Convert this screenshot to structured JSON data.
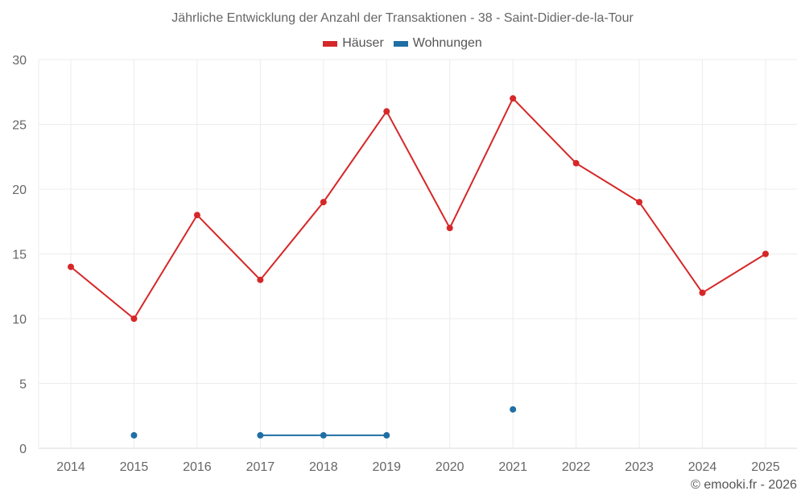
{
  "title": "Jährliche Entwicklung der Anzahl der Transaktionen - 38 - Saint-Didier-de-la-Tour",
  "legend": [
    {
      "label": "Häuser",
      "color": "#d62728"
    },
    {
      "label": "Wohnungen",
      "color": "#1f6fa5"
    }
  ],
  "credit": "© emooki.fr - 2026",
  "chart_data": {
    "type": "line",
    "title": "Jährliche Entwicklung der Anzahl der Transaktionen - 38 - Saint-Didier-de-la-Tour",
    "xlabel": "",
    "ylabel": "",
    "categories": [
      "2014",
      "2015",
      "2016",
      "2017",
      "2018",
      "2019",
      "2020",
      "2021",
      "2022",
      "2023",
      "2024",
      "2025"
    ],
    "ylim": [
      0,
      30
    ],
    "yticks": [
      0,
      5,
      10,
      15,
      20,
      25,
      30
    ],
    "grid": true,
    "legend_position": "top",
    "series": [
      {
        "name": "Häuser",
        "color": "#d62728",
        "values": [
          14,
          10,
          18,
          13,
          19,
          26,
          17,
          27,
          22,
          19,
          12,
          15
        ]
      },
      {
        "name": "Wohnungen",
        "color": "#1f6fa5",
        "values": [
          null,
          1,
          null,
          1,
          1,
          1,
          null,
          3,
          null,
          null,
          null,
          null
        ]
      }
    ]
  }
}
